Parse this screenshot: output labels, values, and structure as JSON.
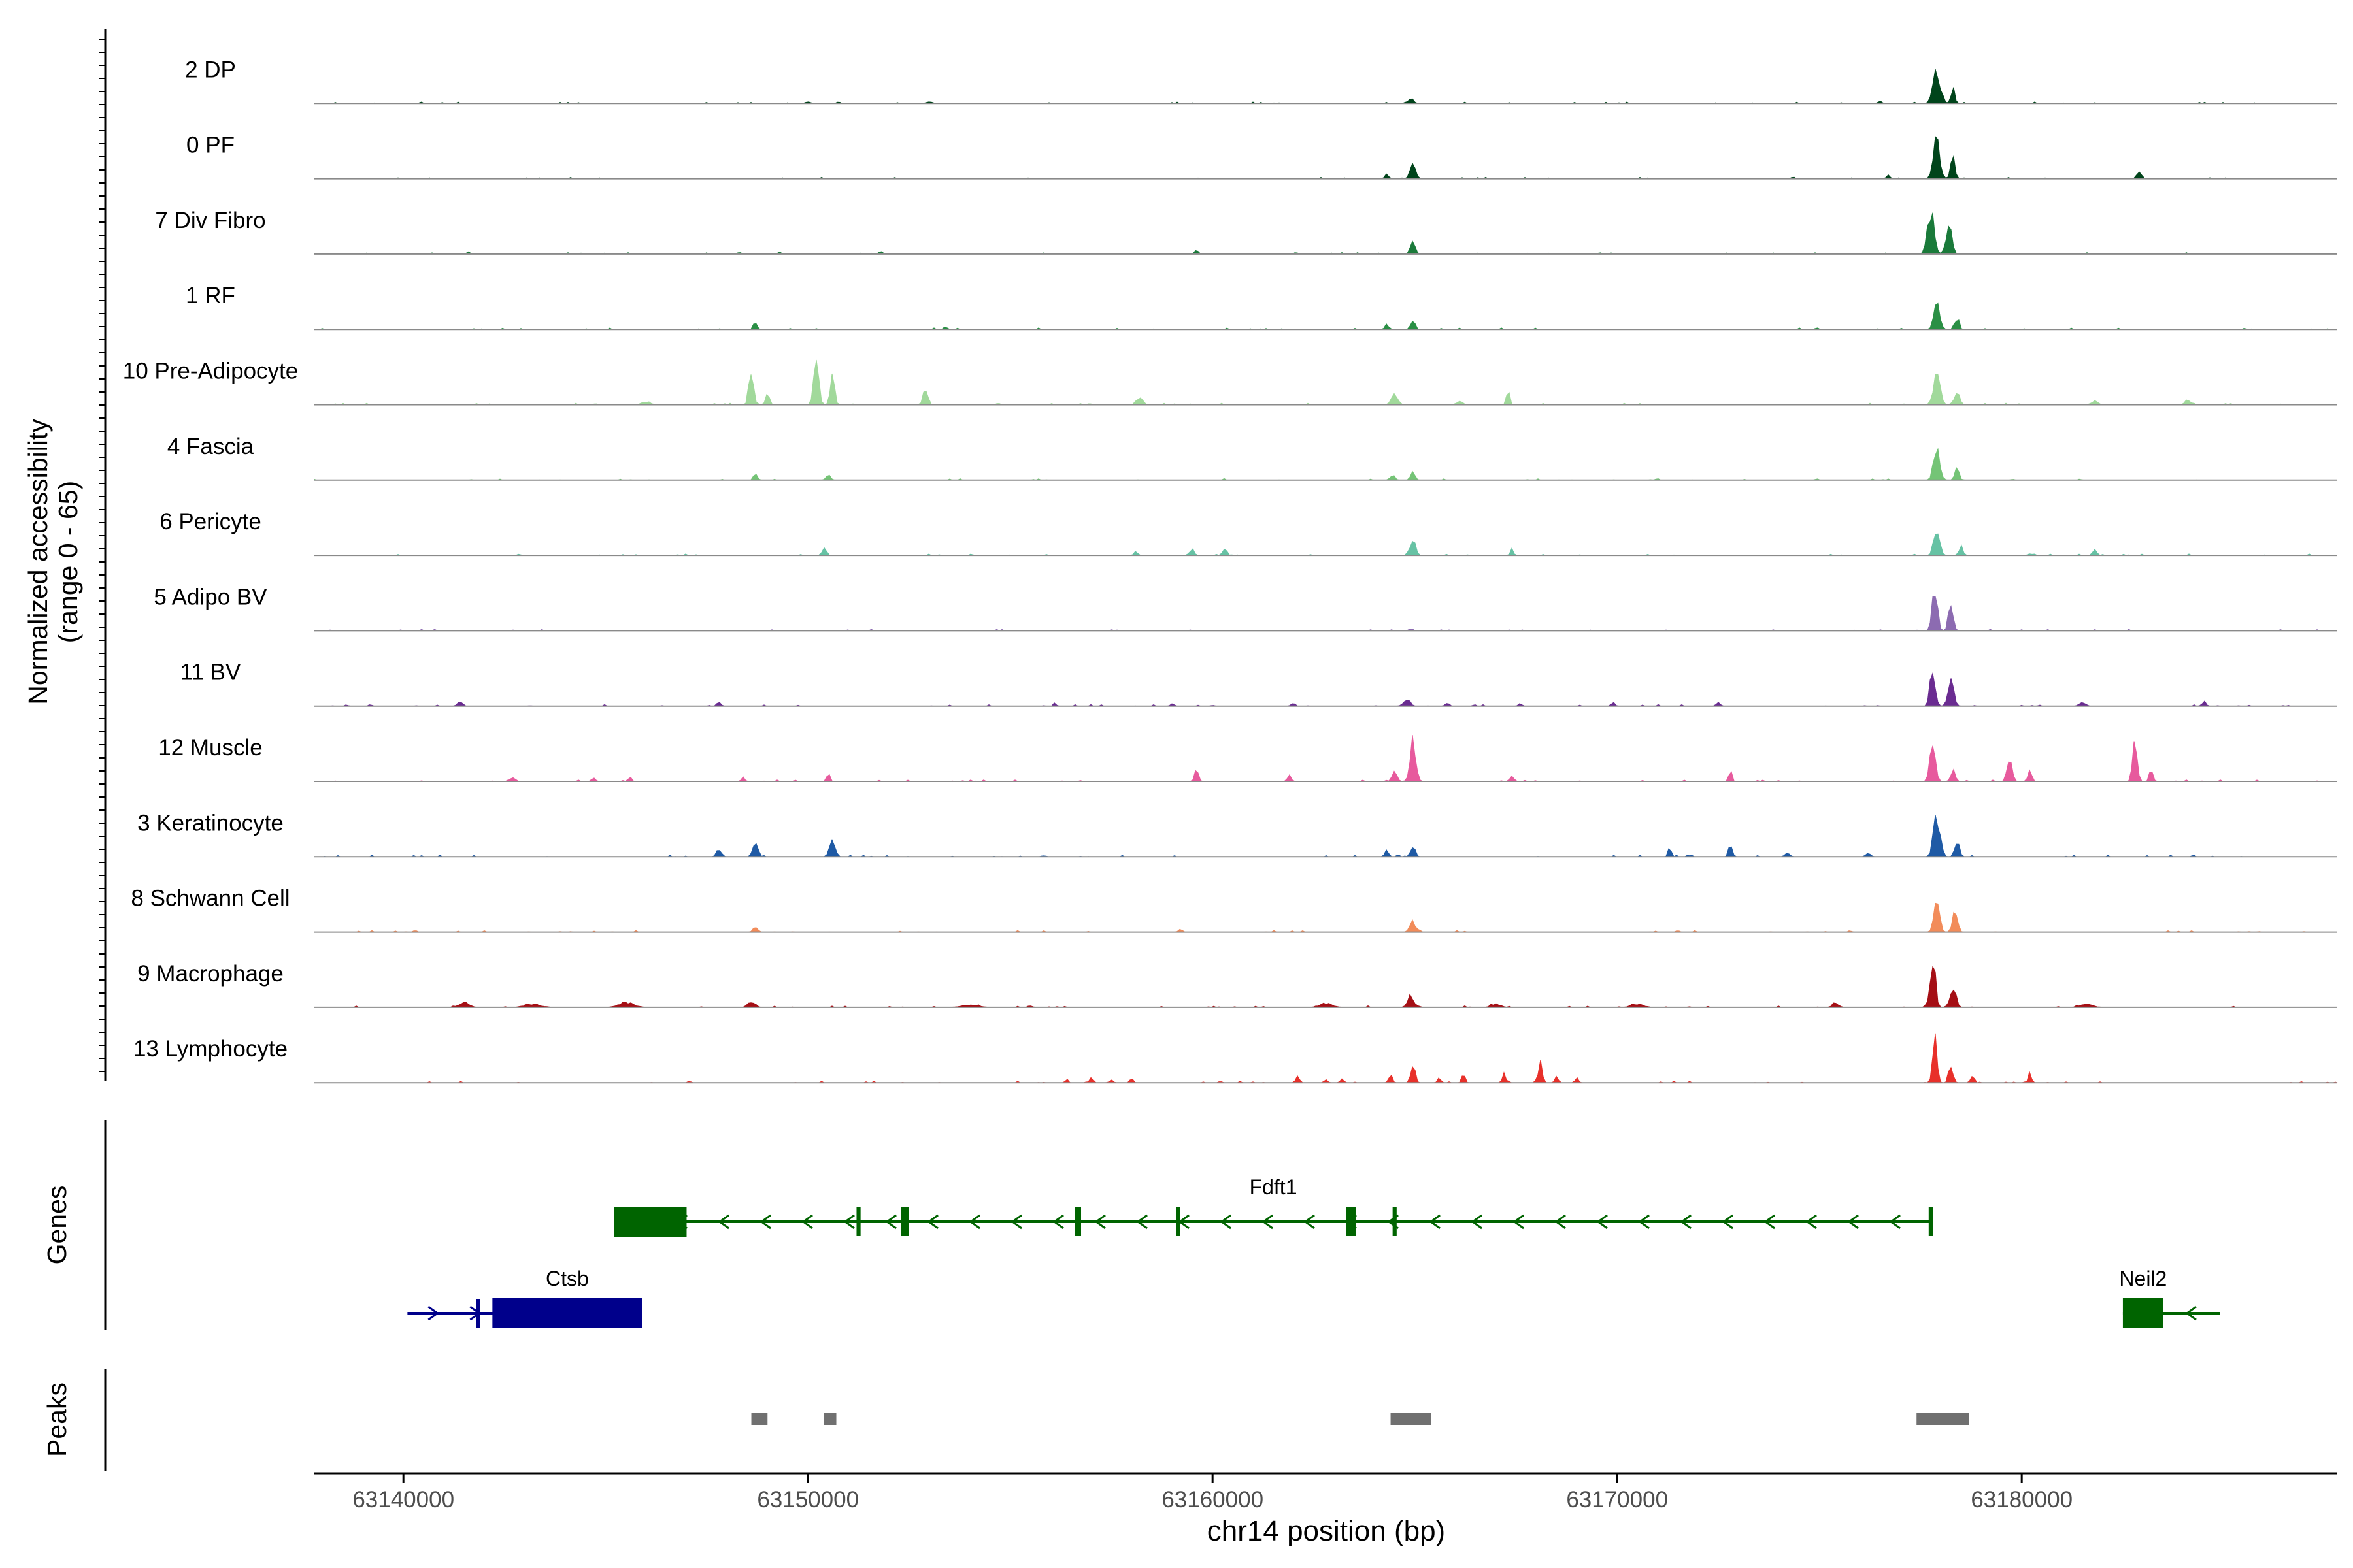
{
  "chart_data": {
    "type": "area",
    "title": "",
    "chromosome": "chr14",
    "xlabel": "chr14 position (bp)",
    "ylabel_line1": "Normalized accessibility",
    "ylabel_line2": "(range 0 - 65)",
    "xlim": [
      63137800,
      63187800
    ],
    "ylim": [
      0,
      65
    ],
    "x_ticks": [
      63140000,
      63150000,
      63160000,
      63170000,
      63180000
    ],
    "x_tick_labels": [
      "63140000",
      "63150000",
      "63160000",
      "63170000",
      "63180000"
    ],
    "panel_labels": {
      "genes": "Genes",
      "peaks": "Peaks"
    },
    "tracks": [
      {
        "name": "2 DP",
        "color": "#00441b",
        "peaks": [
          [
            63164900,
            6,
            160
          ],
          [
            63177900,
            40,
            230
          ],
          [
            63178300,
            20,
            120
          ],
          [
            63176500,
            3,
            120
          ],
          [
            63153000,
            2,
            200
          ],
          [
            63150000,
            2,
            160
          ]
        ]
      },
      {
        "name": "0 PF",
        "color": "#00441b",
        "peaks": [
          [
            63164950,
            18,
            170
          ],
          [
            63164300,
            6,
            120
          ],
          [
            63177900,
            50,
            200
          ],
          [
            63178300,
            25,
            140
          ],
          [
            63182900,
            8,
            150
          ],
          [
            63176700,
            4,
            120
          ]
        ]
      },
      {
        "name": "7 Div Fibro",
        "color": "#1a7a3a",
        "peaks": [
          [
            63164950,
            16,
            150
          ],
          [
            63177750,
            56,
            200
          ],
          [
            63178200,
            40,
            180
          ],
          [
            63159600,
            6,
            100
          ],
          [
            63141600,
            3,
            100
          ],
          [
            63151800,
            4,
            100
          ],
          [
            63149300,
            3,
            100
          ],
          [
            63148300,
            3,
            100
          ]
        ]
      },
      {
        "name": "1 RF",
        "color": "#2a8f45",
        "peaks": [
          [
            63148700,
            10,
            110
          ],
          [
            63164950,
            12,
            130
          ],
          [
            63164300,
            6,
            120
          ],
          [
            63177900,
            35,
            180
          ],
          [
            63178400,
            15,
            130
          ],
          [
            63153400,
            3,
            120
          ]
        ]
      },
      {
        "name": "10 Pre-Adipocyte",
        "color": "#a1d99b",
        "peaks": [
          [
            63148600,
            48,
            140
          ],
          [
            63149000,
            15,
            120
          ],
          [
            63150200,
            60,
            160
          ],
          [
            63150600,
            35,
            140
          ],
          [
            63152900,
            18,
            150
          ],
          [
            63164500,
            14,
            200
          ],
          [
            63167300,
            18,
            100
          ],
          [
            63177900,
            40,
            200
          ],
          [
            63178400,
            18,
            150
          ],
          [
            63184100,
            8,
            150
          ],
          [
            63146000,
            4,
            250
          ],
          [
            63158200,
            8,
            200
          ],
          [
            63166100,
            4,
            200
          ],
          [
            63181800,
            5,
            200
          ]
        ]
      },
      {
        "name": "4 Fascia",
        "color": "#74c476",
        "peaks": [
          [
            63148700,
            8,
            120
          ],
          [
            63150500,
            8,
            140
          ],
          [
            63164450,
            6,
            150
          ],
          [
            63164950,
            10,
            140
          ],
          [
            63177900,
            38,
            200
          ],
          [
            63178400,
            15,
            130
          ]
        ]
      },
      {
        "name": "6 Pericyte",
        "color": "#66c2a4",
        "peaks": [
          [
            63150400,
            10,
            140
          ],
          [
            63158100,
            6,
            100
          ],
          [
            63159500,
            8,
            120
          ],
          [
            63160300,
            8,
            140
          ],
          [
            63164950,
            20,
            160
          ],
          [
            63167400,
            8,
            100
          ],
          [
            63177900,
            40,
            180
          ],
          [
            63178500,
            12,
            130
          ],
          [
            63181800,
            8,
            120
          ]
        ]
      },
      {
        "name": "5 Adipo BV",
        "color": "#8c6bb1",
        "peaks": [
          [
            63177850,
            60,
            150
          ],
          [
            63178250,
            38,
            140
          ],
          [
            63164900,
            3,
            120
          ]
        ]
      },
      {
        "name": "11 BV",
        "color": "#6a2c91",
        "peaks": [
          [
            63141400,
            6,
            150
          ],
          [
            63147800,
            6,
            110
          ],
          [
            63164800,
            10,
            200
          ],
          [
            63177800,
            55,
            150
          ],
          [
            63178250,
            30,
            180
          ],
          [
            63184500,
            6,
            120
          ],
          [
            63165800,
            5,
            120
          ],
          [
            63169900,
            5,
            120
          ],
          [
            63172500,
            5,
            120
          ],
          [
            63156100,
            4,
            80
          ],
          [
            63159000,
            4,
            100
          ],
          [
            63162000,
            4,
            100
          ],
          [
            63167600,
            4,
            100
          ],
          [
            63181500,
            4,
            200
          ]
        ]
      },
      {
        "name": "12 Muscle",
        "color": "#e75a9d",
        "peaks": [
          [
            63164950,
            50,
            180
          ],
          [
            63164500,
            12,
            150
          ],
          [
            63159600,
            16,
            120
          ],
          [
            63177800,
            48,
            170
          ],
          [
            63178300,
            15,
            130
          ],
          [
            63179700,
            32,
            150
          ],
          [
            63180200,
            14,
            110
          ],
          [
            63182800,
            48,
            140
          ],
          [
            63183200,
            15,
            110
          ],
          [
            63150500,
            12,
            100
          ],
          [
            63172800,
            12,
            100
          ],
          [
            63167400,
            8,
            120
          ],
          [
            63161900,
            8,
            120
          ],
          [
            63145600,
            6,
            100
          ],
          [
            63142700,
            5,
            150
          ],
          [
            63144700,
            6,
            100
          ],
          [
            63148400,
            6,
            100
          ]
        ]
      },
      {
        "name": "3 Keratinocyte",
        "color": "#1f5aa5",
        "peaks": [
          [
            63148700,
            22,
            150
          ],
          [
            63147800,
            10,
            140
          ],
          [
            63150600,
            20,
            180
          ],
          [
            63164950,
            12,
            140
          ],
          [
            63164300,
            8,
            120
          ],
          [
            63171300,
            10,
            100
          ],
          [
            63172800,
            18,
            110
          ],
          [
            63177900,
            55,
            200
          ],
          [
            63178400,
            20,
            150
          ],
          [
            63174200,
            5,
            150
          ],
          [
            63176200,
            4,
            150
          ]
        ]
      },
      {
        "name": "8 Schwann Cell",
        "color": "#f28c5a",
        "peaks": [
          [
            63148700,
            8,
            130
          ],
          [
            63164950,
            14,
            180
          ],
          [
            63177900,
            52,
            160
          ],
          [
            63178350,
            25,
            160
          ],
          [
            63159200,
            4,
            120
          ]
        ]
      },
      {
        "name": "9 Macrophage",
        "color": "#a50f15",
        "peaks": [
          [
            63177800,
            65,
            160
          ],
          [
            63178300,
            30,
            170
          ],
          [
            63164900,
            15,
            200
          ],
          [
            63148600,
            8,
            220
          ],
          [
            63141500,
            6,
            300
          ],
          [
            63145500,
            6,
            500
          ],
          [
            63143200,
            4,
            500
          ],
          [
            63154000,
            3,
            500
          ],
          [
            63162800,
            5,
            400
          ],
          [
            63167000,
            4,
            300
          ],
          [
            63170500,
            4,
            400
          ],
          [
            63175400,
            5,
            200
          ],
          [
            63181600,
            4,
            400
          ]
        ]
      },
      {
        "name": "13 Lymphocyte",
        "color": "#e8302a",
        "peaks": [
          [
            63177850,
            55,
            130
          ],
          [
            63178250,
            25,
            130
          ],
          [
            63180200,
            14,
            90
          ],
          [
            63164950,
            22,
            130
          ],
          [
            63164400,
            12,
            110
          ],
          [
            63167200,
            12,
            100
          ],
          [
            63168100,
            25,
            120
          ],
          [
            63168500,
            10,
            100
          ],
          [
            63166200,
            10,
            100
          ],
          [
            63165600,
            6,
            100
          ],
          [
            63157000,
            6,
            100
          ],
          [
            63156400,
            6,
            80
          ],
          [
            63162100,
            10,
            100
          ],
          [
            63169000,
            6,
            100
          ],
          [
            63158000,
            5,
            100
          ],
          [
            63157500,
            4,
            100
          ],
          [
            63162800,
            5,
            100
          ],
          [
            63163200,
            5,
            100
          ],
          [
            63178800,
            12,
            80
          ]
        ]
      }
    ],
    "genes": [
      {
        "name": "Fdft1",
        "color": "#006400",
        "strand": "-",
        "row": 0,
        "start": 63145200,
        "end": 63177800,
        "exons": [
          [
            63145200,
            63147000
          ],
          [
            63151200,
            63151300
          ],
          [
            63152300,
            63152500
          ],
          [
            63156600,
            63156750
          ],
          [
            63159100,
            63159200
          ],
          [
            63163300,
            63163550
          ],
          [
            63164450,
            63164550
          ],
          [
            63177700,
            63177800
          ]
        ]
      },
      {
        "name": "Ctsb",
        "color": "#00008b",
        "strand": "+",
        "row": 1,
        "start": 63140100,
        "end": 63145900,
        "exons": [
          [
            63141800,
            63141900
          ],
          [
            63142200,
            63145900
          ]
        ]
      },
      {
        "name": "Neil2",
        "color": "#006400",
        "strand": "-",
        "row": 1,
        "start": 63182500,
        "end": 63184900,
        "exons": [
          [
            63182500,
            63183500
          ]
        ]
      }
    ],
    "peak_regions": [
      [
        63148600,
        63149000
      ],
      [
        63150400,
        63150700
      ],
      [
        63164400,
        63165400
      ],
      [
        63177400,
        63178700
      ]
    ]
  }
}
